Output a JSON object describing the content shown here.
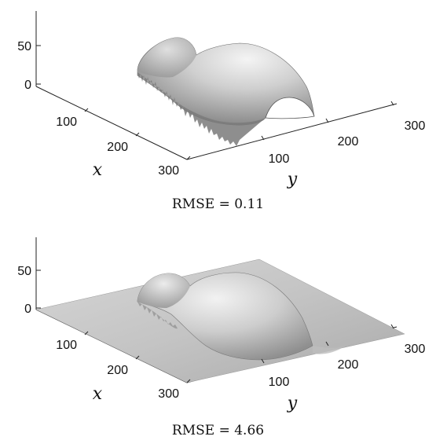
{
  "chart_data": [
    {
      "type": "surface",
      "title": "",
      "xlabel": "x",
      "ylabel": "y",
      "zlabel": "",
      "x_ticks": [
        "100",
        "200",
        "300"
      ],
      "y_ticks": [
        "100",
        "200",
        "300"
      ],
      "z_ticks": [
        "0",
        "50"
      ],
      "caption": "RMSE = 0.11"
    },
    {
      "type": "surface",
      "title": "",
      "xlabel": "x",
      "ylabel": "y",
      "zlabel": "",
      "x_ticks": [
        "100",
        "200",
        "300"
      ],
      "y_ticks": [
        "100",
        "200",
        "300"
      ],
      "z_ticks": [
        "0",
        "50"
      ],
      "caption": "RMSE = 4.66"
    }
  ]
}
